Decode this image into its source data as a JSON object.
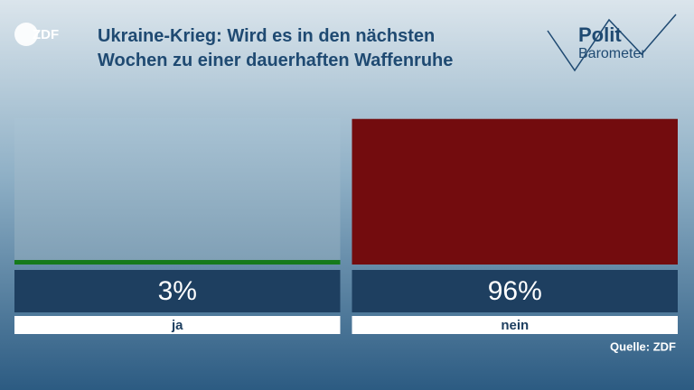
{
  "chart_data": {
    "type": "bar",
    "logo": "ZDF",
    "brand": [
      "Polit",
      "Barometer"
    ],
    "title": [
      "Ukraine-Krieg: Wird es in den nächsten",
      "Wochen zu einer dauerhaften Waffenruhe"
    ],
    "categories": [
      "ja",
      "nein"
    ],
    "values": [
      3,
      96
    ],
    "value_labels": [
      "3%",
      "96%"
    ],
    "colors": [
      "#157a1c",
      "#730c0e"
    ],
    "ylim": [
      0,
      100
    ],
    "source": "Quelle: ZDF"
  }
}
